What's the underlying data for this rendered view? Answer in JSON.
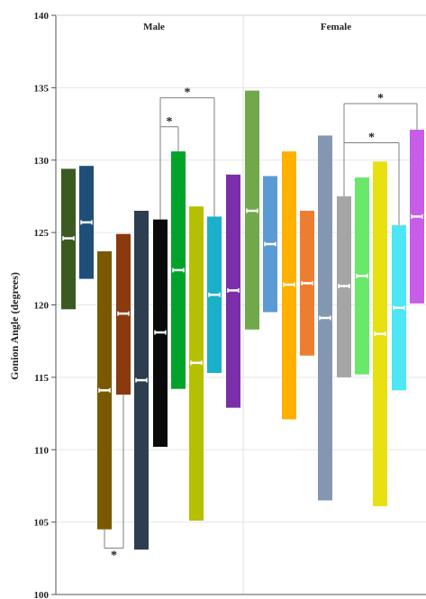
{
  "chart_data": {
    "type": "floating-bar",
    "title": "",
    "ylabel": "Gonion Angle (degrees)",
    "ylim": [
      100,
      140
    ],
    "yticks": [
      100,
      105,
      110,
      115,
      120,
      125,
      130,
      135,
      140
    ],
    "grid": true,
    "panels": [
      {
        "label": "Male",
        "bars": [
          {
            "low": 119.7,
            "high": 129.4,
            "mean": 124.6,
            "color": "#3a5a22"
          },
          {
            "low": 121.8,
            "high": 129.6,
            "mean": 125.7,
            "color": "#1f4e79"
          },
          {
            "low": 104.5,
            "high": 123.7,
            "mean": 114.1,
            "color": "#7a5a00"
          },
          {
            "low": 113.8,
            "high": 124.9,
            "mean": 119.4,
            "color": "#8b3a0e"
          },
          {
            "low": 103.1,
            "high": 126.5,
            "mean": 114.8,
            "color": "#2c3e50"
          },
          {
            "low": 110.2,
            "high": 125.9,
            "mean": 118.1,
            "color": "#0a0a0a"
          },
          {
            "low": 114.2,
            "high": 130.6,
            "mean": 122.4,
            "color": "#00a32a"
          },
          {
            "low": 105.1,
            "high": 126.8,
            "mean": 116.0,
            "color": "#b5c000"
          },
          {
            "low": 115.3,
            "high": 126.1,
            "mean": 120.7,
            "color": "#1ab0c9"
          },
          {
            "low": 112.9,
            "high": 129.0,
            "mean": 121.0,
            "color": "#7a2ea8"
          }
        ]
      },
      {
        "label": "Female",
        "bars": [
          {
            "low": 118.3,
            "high": 134.8,
            "mean": 126.5,
            "color": "#70a84a"
          },
          {
            "low": 119.5,
            "high": 128.9,
            "mean": 124.2,
            "color": "#5b9bd5"
          },
          {
            "low": 112.1,
            "high": 130.6,
            "mean": 121.4,
            "color": "#ffb000"
          },
          {
            "low": 116.5,
            "high": 126.5,
            "mean": 121.5,
            "color": "#ed7d31"
          },
          {
            "low": 106.5,
            "high": 131.7,
            "mean": 119.1,
            "color": "#8497b0"
          },
          {
            "low": 115.0,
            "high": 127.5,
            "mean": 121.3,
            "color": "#a5a5a5"
          },
          {
            "low": 115.2,
            "high": 128.8,
            "mean": 122.0,
            "color": "#69e86a"
          },
          {
            "low": 106.1,
            "high": 129.9,
            "mean": 118.0,
            "color": "#e8e010"
          },
          {
            "low": 114.1,
            "high": 125.5,
            "mean": 119.8,
            "color": "#4ce6f5"
          },
          {
            "low": 120.1,
            "high": 132.1,
            "mean": 126.1,
            "color": "#c85de8"
          }
        ]
      }
    ],
    "significance": [
      {
        "label": "*",
        "from": [
          0,
          2
        ],
        "to": [
          0,
          3
        ],
        "position": "below",
        "y": 103.2
      },
      {
        "label": "*",
        "from": [
          0,
          5
        ],
        "to": [
          0,
          6
        ],
        "position": "above",
        "y": 132.3
      },
      {
        "label": "*",
        "from": [
          0,
          5
        ],
        "to": [
          0,
          8
        ],
        "position": "above",
        "y": 134.3
      },
      {
        "label": "*",
        "from": [
          1,
          5
        ],
        "to": [
          1,
          8
        ],
        "position": "above",
        "y": 131.2
      },
      {
        "label": "*",
        "from": [
          1,
          5
        ],
        "to": [
          1,
          9
        ],
        "position": "above",
        "y": 133.9
      }
    ]
  }
}
